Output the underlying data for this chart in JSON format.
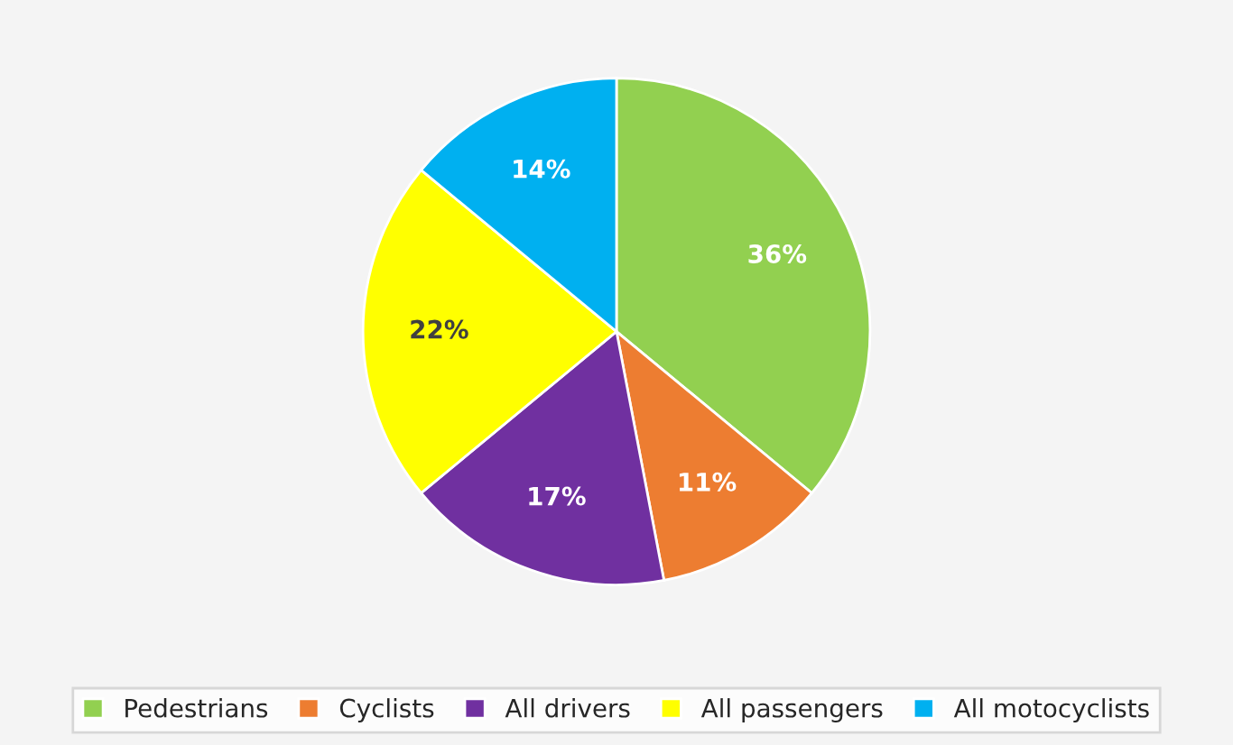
{
  "chart_data": {
    "type": "pie",
    "categories": [
      "Pedestrians",
      "Cyclists",
      "All drivers",
      "All passengers",
      "All motocyclists"
    ],
    "values": [
      36,
      11,
      17,
      22,
      14
    ],
    "colors": [
      "#92d050",
      "#ed7d31",
      "#7030a0",
      "#ffff00",
      "#00b0f0"
    ],
    "value_labels": [
      "36%",
      "11%",
      "17%",
      "22%",
      "14%"
    ],
    "legend": "bottom"
  }
}
